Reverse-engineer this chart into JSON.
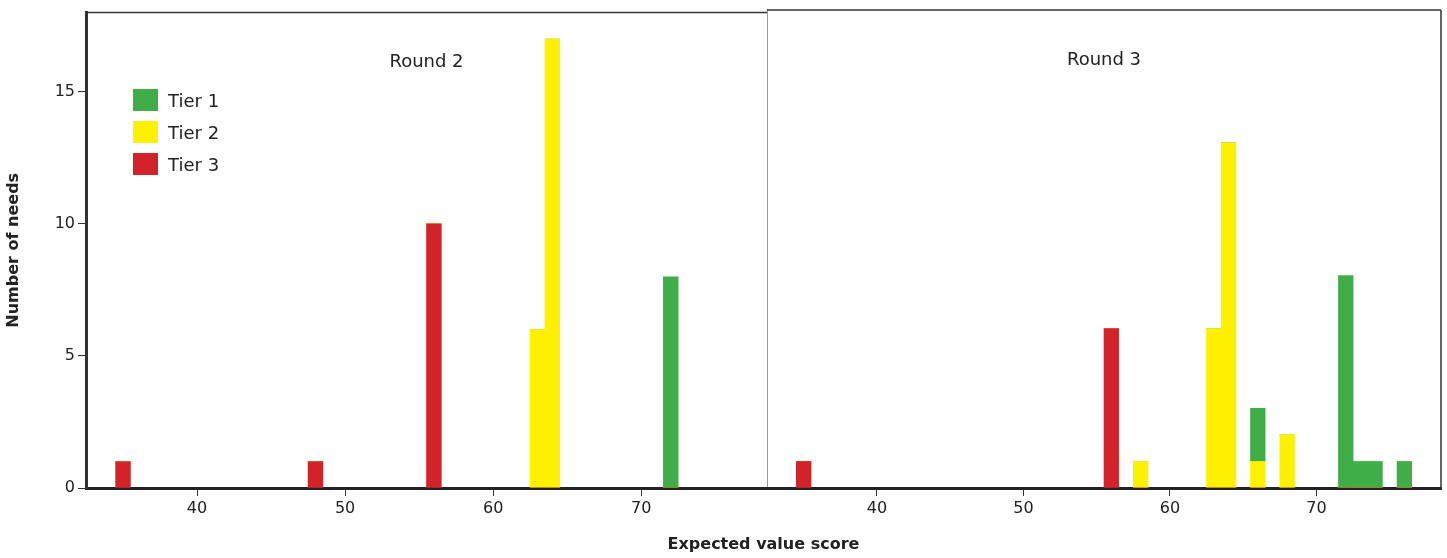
{
  "chart_data": [
    {
      "type": "bar",
      "title": "Round 2",
      "xlabel": "Expected value score",
      "ylabel": "Number of needs",
      "stacked": true,
      "legend": "top left",
      "grid": false,
      "x": [
        35,
        48,
        56,
        63,
        64,
        72
      ],
      "xlim": [
        32.5,
        78.5
      ],
      "xticks": [
        40,
        50,
        60,
        70
      ],
      "ylim": [
        0,
        18
      ],
      "yticks": [
        0,
        5,
        10,
        15
      ],
      "series": [
        {
          "name": "Tier 3",
          "color": "#d2232a",
          "values": [
            1,
            1,
            10,
            0,
            0,
            0
          ]
        },
        {
          "name": "Tier 2",
          "color": "#fff000",
          "values": [
            0,
            0,
            0,
            6,
            17,
            0
          ]
        },
        {
          "name": "Tier 1",
          "color": "#3fae49",
          "values": [
            0,
            0,
            0,
            0,
            0,
            8
          ]
        }
      ]
    },
    {
      "type": "bar",
      "title": "Round 3",
      "stacked": true,
      "grid": false,
      "tick_labels": "x",
      "x": [
        35,
        56,
        58,
        63,
        64,
        66,
        68,
        72,
        73,
        74,
        76
      ],
      "xlim": [
        32.5,
        78.5
      ],
      "xticks": [
        40,
        50,
        60,
        70
      ],
      "ylim": [
        0,
        18
      ],
      "yticks": [
        0,
        5,
        10,
        15
      ],
      "series": [
        {
          "color": "#d2232a",
          "values": [
            1,
            6,
            0,
            0,
            0,
            0,
            0,
            0,
            0,
            0,
            0
          ]
        },
        {
          "color": "#fff000",
          "values": [
            0,
            0,
            1,
            6,
            13,
            1,
            2,
            0,
            0,
            0,
            0
          ]
        },
        {
          "color": "#3fae49",
          "values": [
            0,
            0,
            0,
            0,
            0,
            2,
            0,
            8,
            1,
            1,
            1
          ]
        }
      ]
    }
  ]
}
